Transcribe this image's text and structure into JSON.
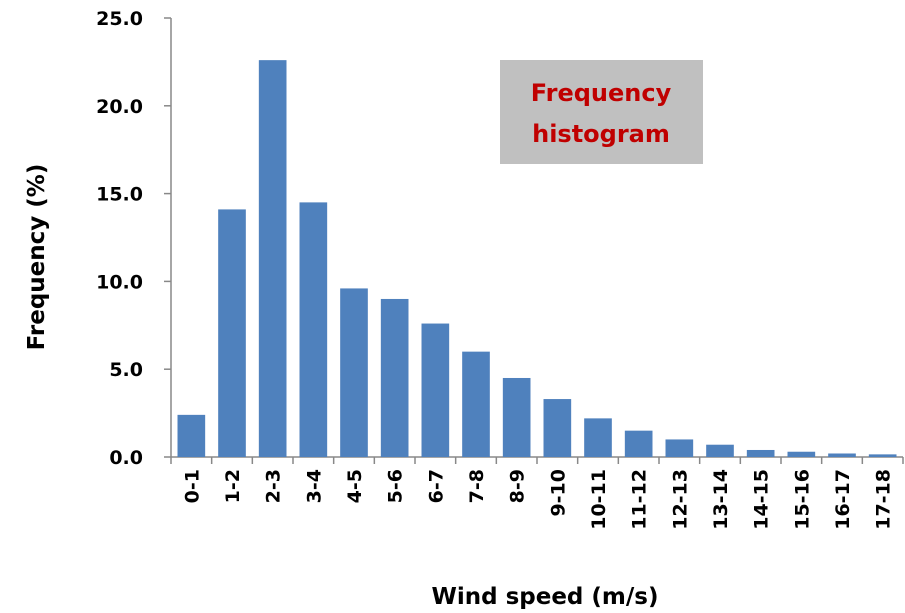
{
  "chart_data": {
    "type": "bar",
    "title": "",
    "xlabel": "Wind speed (m/s)",
    "ylabel": "Frequency (%)",
    "ylim": [
      0,
      25
    ],
    "yticks": [
      "0.0",
      "5.0",
      "10.0",
      "15.0",
      "20.0",
      "25.0"
    ],
    "ytick_values": [
      0,
      5,
      10,
      15,
      20,
      25
    ],
    "grid": false,
    "categories": [
      "0-1",
      "1-2",
      "2-3",
      "3-4",
      "4-5",
      "5-6",
      "6-7",
      "7-8",
      "8-9",
      "9-10",
      "10-11",
      "11-12",
      "12-13",
      "13-14",
      "14-15",
      "15-16",
      "16-17",
      "17-18"
    ],
    "values": [
      2.4,
      14.1,
      22.6,
      14.5,
      9.6,
      9.0,
      7.6,
      6.0,
      4.5,
      3.3,
      2.2,
      1.5,
      1.0,
      0.7,
      0.4,
      0.3,
      0.2,
      0.15
    ],
    "bar_color": "#4f81bd",
    "annotation": {
      "line1": "Frequency",
      "line2": "histogram",
      "text_color": "#c00000",
      "box_color": "#c0c0c0",
      "placement": "top-right"
    }
  }
}
